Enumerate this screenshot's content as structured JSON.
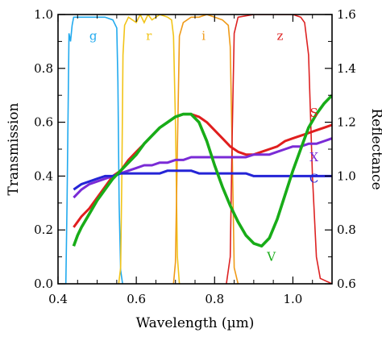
{
  "chart_data": {
    "type": "line",
    "xlabel": "Wavelength (µm)",
    "ylabel": "Transmission",
    "ylabel_right": "Reflectance",
    "xlim": [
      0.4,
      1.1
    ],
    "ylim": [
      0.0,
      1.0
    ],
    "ylim_right": [
      0.6,
      1.6
    ],
    "x_ticks": [
      0.4,
      0.6,
      0.8,
      1.0
    ],
    "x_tick_labels": [
      "0.4",
      "0.6",
      "0.8",
      "1.0"
    ],
    "y_ticks": [
      0.0,
      0.2,
      0.4,
      0.6,
      0.8,
      1.0
    ],
    "y_tick_labels": [
      "0.0",
      "0.2",
      "0.4",
      "0.6",
      "0.8",
      "1.0"
    ],
    "y_right_ticks": [
      0.6,
      0.8,
      1.0,
      1.2,
      1.4,
      1.6
    ],
    "y_right_tick_labels": [
      "0.6",
      "0.8",
      "1.0",
      "1.2",
      "1.4",
      "1.6"
    ],
    "grid": false,
    "filters": [
      {
        "name": "g",
        "label": "g",
        "color": "#22aaee",
        "axis": "left",
        "x": [
          0.42,
          0.423,
          0.428,
          0.432,
          0.436,
          0.44,
          0.45,
          0.47,
          0.5,
          0.52,
          0.54,
          0.55,
          0.553,
          0.556,
          0.56,
          0.565
        ],
        "y": [
          0.0,
          0.3,
          0.93,
          0.9,
          0.96,
          0.99,
          0.99,
          0.99,
          0.99,
          0.99,
          0.98,
          0.95,
          0.75,
          0.3,
          0.05,
          0.0
        ]
      },
      {
        "name": "r",
        "label": "r",
        "color": "#f2c418",
        "axis": "left",
        "x": [
          0.555,
          0.56,
          0.563,
          0.566,
          0.57,
          0.58,
          0.59,
          0.6,
          0.61,
          0.62,
          0.63,
          0.64,
          0.66,
          0.68,
          0.69,
          0.695,
          0.7,
          0.705,
          0.71
        ],
        "y": [
          0.0,
          0.06,
          0.4,
          0.85,
          0.96,
          0.99,
          0.98,
          0.97,
          1.0,
          0.97,
          1.0,
          0.98,
          1.0,
          0.99,
          0.98,
          0.92,
          0.6,
          0.1,
          0.0
        ]
      },
      {
        "name": "i",
        "label": "i",
        "color": "#ef9a18",
        "axis": "left",
        "x": [
          0.695,
          0.7,
          0.705,
          0.71,
          0.72,
          0.74,
          0.76,
          0.78,
          0.8,
          0.82,
          0.835,
          0.84,
          0.845,
          0.85,
          0.86
        ],
        "y": [
          0.0,
          0.08,
          0.5,
          0.92,
          0.97,
          0.99,
          0.99,
          1.0,
          0.99,
          0.98,
          0.96,
          0.88,
          0.5,
          0.06,
          0.0
        ]
      },
      {
        "name": "z",
        "label": "z",
        "color": "#dd2222",
        "axis": "left",
        "x": [
          0.83,
          0.84,
          0.845,
          0.85,
          0.86,
          0.9,
          0.95,
          1.0,
          1.02,
          1.03,
          1.04,
          1.05,
          1.06,
          1.07,
          1.1
        ],
        "y": [
          0.0,
          0.1,
          0.55,
          0.93,
          0.99,
          1.0,
          1.0,
          1.0,
          0.99,
          0.97,
          0.85,
          0.4,
          0.1,
          0.02,
          0.0
        ]
      }
    ],
    "series": [
      {
        "name": "S",
        "label": "S",
        "color": "#e01e1e",
        "axis": "right",
        "x": [
          0.44,
          0.46,
          0.48,
          0.5,
          0.52,
          0.54,
          0.56,
          0.58,
          0.6,
          0.62,
          0.64,
          0.66,
          0.68,
          0.7,
          0.72,
          0.74,
          0.76,
          0.78,
          0.8,
          0.82,
          0.84,
          0.86,
          0.88,
          0.9,
          0.92,
          0.94,
          0.96,
          0.98,
          1.0,
          1.02,
          1.04,
          1.06,
          1.08,
          1.1
        ],
        "y": [
          0.81,
          0.85,
          0.88,
          0.92,
          0.96,
          1.0,
          1.02,
          1.06,
          1.09,
          1.12,
          1.15,
          1.18,
          1.2,
          1.22,
          1.23,
          1.23,
          1.22,
          1.2,
          1.17,
          1.14,
          1.11,
          1.09,
          1.08,
          1.08,
          1.09,
          1.1,
          1.11,
          1.13,
          1.14,
          1.15,
          1.16,
          1.17,
          1.18,
          1.19
        ]
      },
      {
        "name": "X",
        "label": "X",
        "color": "#7a2bd6",
        "axis": "right",
        "x": [
          0.44,
          0.46,
          0.48,
          0.5,
          0.52,
          0.54,
          0.56,
          0.58,
          0.6,
          0.62,
          0.64,
          0.66,
          0.68,
          0.7,
          0.72,
          0.74,
          0.76,
          0.78,
          0.8,
          0.82,
          0.84,
          0.86,
          0.88,
          0.9,
          0.92,
          0.94,
          0.96,
          0.98,
          1.0,
          1.02,
          1.04,
          1.06,
          1.08,
          1.1
        ],
        "y": [
          0.92,
          0.95,
          0.97,
          0.98,
          0.99,
          1.0,
          1.01,
          1.02,
          1.03,
          1.04,
          1.04,
          1.05,
          1.05,
          1.06,
          1.06,
          1.07,
          1.07,
          1.07,
          1.07,
          1.07,
          1.07,
          1.07,
          1.07,
          1.08,
          1.08,
          1.08,
          1.09,
          1.1,
          1.11,
          1.11,
          1.12,
          1.12,
          1.13,
          1.14
        ]
      },
      {
        "name": "C",
        "label": "C",
        "color": "#2424d6",
        "axis": "right",
        "x": [
          0.44,
          0.46,
          0.48,
          0.5,
          0.52,
          0.54,
          0.56,
          0.58,
          0.6,
          0.62,
          0.64,
          0.66,
          0.68,
          0.7,
          0.72,
          0.74,
          0.76,
          0.78,
          0.8,
          0.82,
          0.84,
          0.86,
          0.88,
          0.9,
          0.92,
          0.94,
          0.96,
          0.98,
          1.0,
          1.02,
          1.04,
          1.06,
          1.08,
          1.1
        ],
        "y": [
          0.95,
          0.97,
          0.98,
          0.99,
          1.0,
          1.0,
          1.01,
          1.01,
          1.01,
          1.01,
          1.01,
          1.01,
          1.02,
          1.02,
          1.02,
          1.02,
          1.01,
          1.01,
          1.01,
          1.01,
          1.01,
          1.01,
          1.01,
          1.0,
          1.0,
          1.0,
          1.0,
          1.0,
          1.0,
          1.0,
          1.0,
          1.0,
          1.0,
          1.0
        ]
      },
      {
        "name": "V",
        "label": "V",
        "color": "#18ac18",
        "axis": "right",
        "x": [
          0.44,
          0.45,
          0.46,
          0.48,
          0.5,
          0.52,
          0.54,
          0.56,
          0.58,
          0.6,
          0.62,
          0.64,
          0.66,
          0.68,
          0.7,
          0.72,
          0.74,
          0.76,
          0.78,
          0.8,
          0.82,
          0.84,
          0.86,
          0.88,
          0.9,
          0.92,
          0.94,
          0.96,
          0.98,
          1.0,
          1.02,
          1.04,
          1.06,
          1.08,
          1.1
        ],
        "y": [
          0.74,
          0.78,
          0.81,
          0.86,
          0.91,
          0.95,
          0.99,
          1.02,
          1.05,
          1.08,
          1.12,
          1.15,
          1.18,
          1.2,
          1.22,
          1.23,
          1.23,
          1.2,
          1.13,
          1.04,
          0.96,
          0.89,
          0.83,
          0.78,
          0.75,
          0.74,
          0.77,
          0.84,
          0.93,
          1.02,
          1.1,
          1.18,
          1.23,
          1.27,
          1.3
        ]
      }
    ]
  }
}
